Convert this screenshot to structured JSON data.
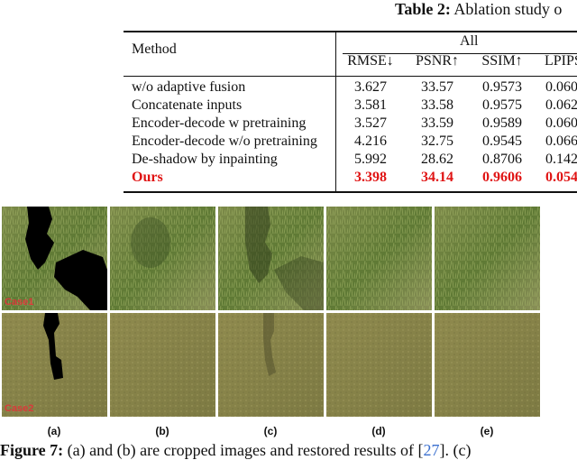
{
  "table": {
    "caption_bold": "Table 2:",
    "caption_text": "Ablation study o",
    "method_header": "Method",
    "group_header": "All",
    "columns": [
      "RMSE↓",
      "PSNR↑",
      "SSIM↑",
      "LPIPS"
    ],
    "rows": [
      {
        "method": "w/o adaptive fusion",
        "values": [
          "3.627",
          "33.57",
          "0.9573",
          "0.060"
        ]
      },
      {
        "method": "Concatenate inputs",
        "values": [
          "3.581",
          "33.58",
          "0.9575",
          "0.062"
        ]
      },
      {
        "method": "Encoder-decode w pretraining",
        "values": [
          "3.527",
          "33.59",
          "0.9589",
          "0.060"
        ]
      },
      {
        "method": "Encoder-decode w/o pretraining",
        "values": [
          "4.216",
          "32.75",
          "0.9545",
          "0.066"
        ]
      },
      {
        "method": "De-shadow by inpainting",
        "values": [
          "5.992",
          "28.62",
          "0.8706",
          "0.142"
        ]
      }
    ],
    "highlight_row": {
      "method": "Ours",
      "values": [
        "3.398",
        "34.14",
        "0.9606",
        "0.054"
      ]
    },
    "highlight_color": "#e01414"
  },
  "figure": {
    "case_labels": [
      "Case1",
      "Case2"
    ],
    "sub_labels": [
      "(a)",
      "(b)",
      "(c)",
      "(d)",
      "(e)"
    ],
    "caption_bold": "Figure 7:",
    "caption_text_1": " (a) and (b) are cropped images and restored results of [",
    "caption_ref": "27",
    "caption_text_2": "]. (c)"
  }
}
